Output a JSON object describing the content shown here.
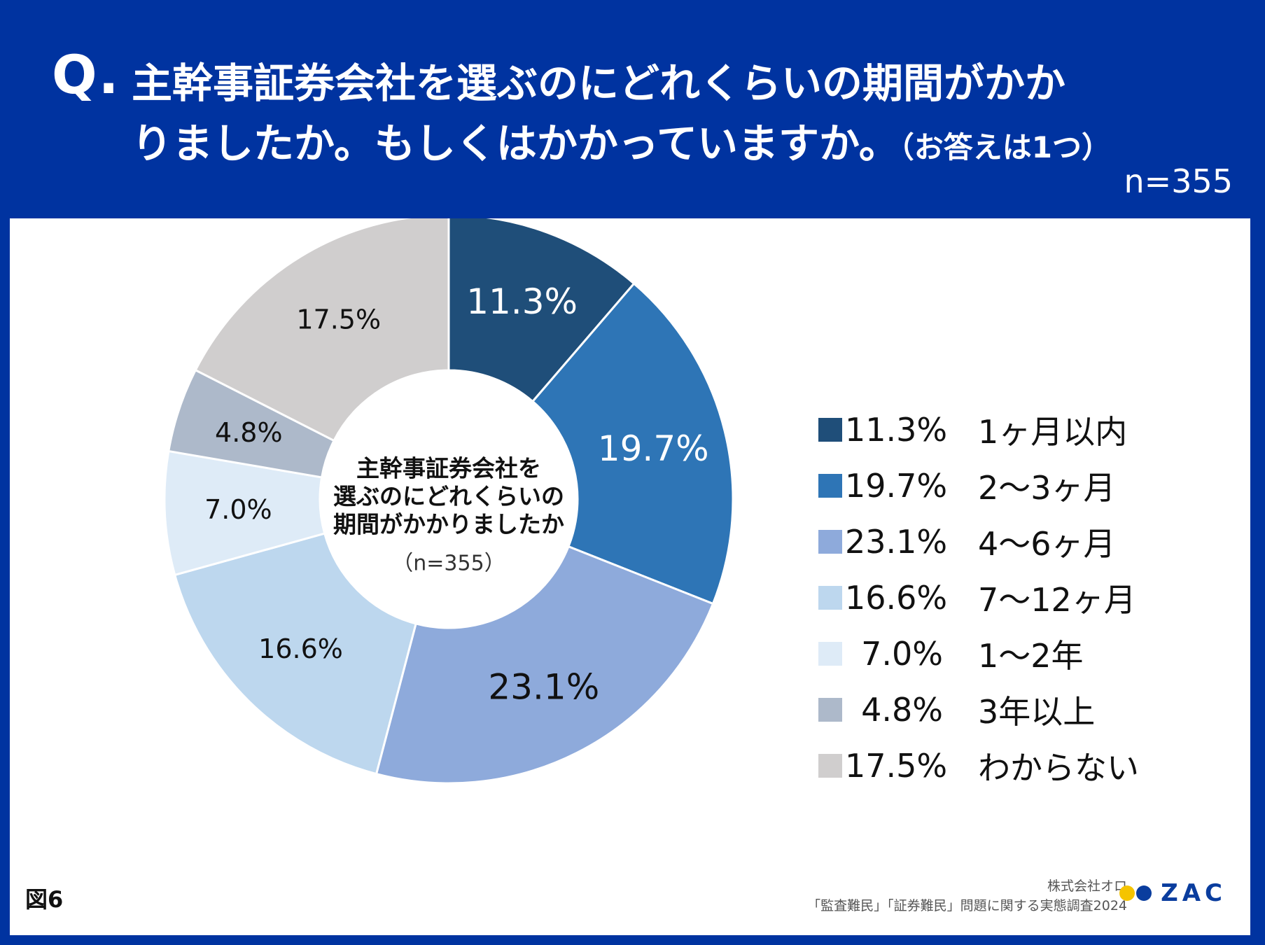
{
  "header": {
    "q_mark": "Q.",
    "question_line1": "主幹事証券会社を選ぶのにどれくらいの期間がかか",
    "question_line2": "りましたか。もしくはかかっていますか。",
    "question_note": "（お答えは1つ）",
    "sample_size": "n=355"
  },
  "chart_data": {
    "type": "pie",
    "title": "主幹事証券会社を選ぶのにどれくらいの期間がかかりましたか",
    "center_label_lines": [
      "主幹事証券会社を",
      "選ぶのにどれくらいの",
      "期間がかかりましたか"
    ],
    "center_n": "（n=355）",
    "slices": [
      {
        "label": "1ヶ月以内",
        "value": 11.3,
        "pct_text": "11.3%",
        "color": "#1f4e79",
        "text_color": "#ffffff"
      },
      {
        "label": "2～3ヶ月",
        "value": 19.7,
        "pct_text": "19.7%",
        "color": "#2e75b6",
        "text_color": "#ffffff"
      },
      {
        "label": "4～6ヶ月",
        "value": 23.1,
        "pct_text": "23.1%",
        "color": "#8eaadb",
        "text_color": "#111111"
      },
      {
        "label": "7～12ヶ月",
        "value": 16.6,
        "pct_text": "16.6%",
        "color": "#bdd7ee",
        "text_color": "#111111"
      },
      {
        "label": "1～2年",
        "value": 7.0,
        "pct_text": "7.0%",
        "color": "#deebf7",
        "text_color": "#111111"
      },
      {
        "label": "3年以上",
        "value": 4.8,
        "pct_text": "4.8%",
        "color": "#adb9ca",
        "text_color": "#111111"
      },
      {
        "label": "わからない",
        "value": 17.5,
        "pct_text": "17.5%",
        "color": "#d0cece",
        "text_color": "#111111"
      }
    ],
    "legend_position": "right"
  },
  "footer": {
    "figure_label": "図6",
    "company": "株式会社オロ",
    "survey": "「監査難民」「証券難民」問題に関する実態調査2024",
    "logo_text": "ZAC"
  },
  "colors": {
    "brand_blue": "#0033a0",
    "logo_yellow": "#f5c400",
    "logo_blue": "#0a3d9e"
  }
}
